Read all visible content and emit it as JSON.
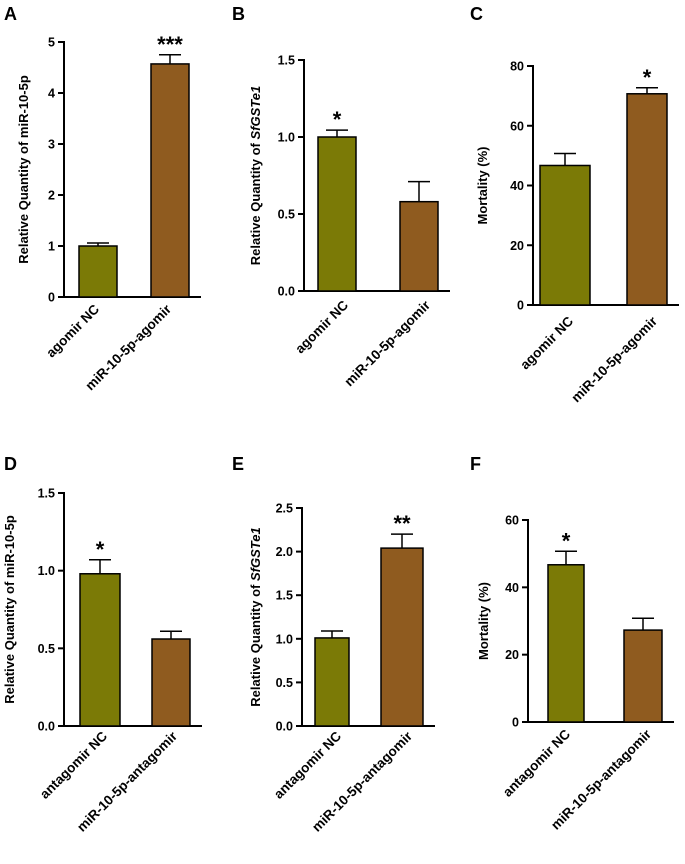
{
  "colors": {
    "nc": "#7b7a06",
    "treat": "#8f5b1f"
  },
  "chart_data": [
    {
      "panel": "A",
      "type": "bar",
      "categories": [
        "agomir NC",
        "miR-10-5p-agomir"
      ],
      "values": [
        1.0,
        4.57
      ],
      "errors": [
        0.06,
        0.18
      ],
      "ylabel": "Relative Quantity of miR-10-5p",
      "ylabel_italic": "",
      "ylim": [
        0,
        5
      ],
      "yticks": [
        "0",
        "1",
        "2",
        "3",
        "4",
        "5"
      ],
      "significance": [
        "",
        "***"
      ]
    },
    {
      "panel": "B",
      "type": "bar",
      "categories": [
        "agomir NC",
        "miR-10-5p-agomir"
      ],
      "values": [
        1.0,
        0.58
      ],
      "errors": [
        0.045,
        0.13
      ],
      "ylabel": "Relative Quantity of ",
      "ylabel_italic": "SfGSTe1",
      "ylim": [
        0,
        1.5
      ],
      "yticks": [
        "0.0",
        "0.5",
        "1.0",
        "1.5"
      ],
      "significance": [
        "*",
        ""
      ]
    },
    {
      "panel": "C",
      "type": "bar",
      "categories": [
        "agomir NC",
        "miR-10-5p-agomir"
      ],
      "values": [
        46.7,
        70.7
      ],
      "errors": [
        4.0,
        2.0
      ],
      "ylabel": "Mortality (%)",
      "ylabel_italic": "",
      "ylim": [
        0,
        80
      ],
      "yticks": [
        "0",
        "20",
        "40",
        "60",
        "80"
      ],
      "significance": [
        "",
        "*"
      ]
    },
    {
      "panel": "D",
      "type": "bar",
      "categories": [
        "antagomir NC",
        "miR-10-5p-antagomir"
      ],
      "values": [
        0.98,
        0.56
      ],
      "errors": [
        0.09,
        0.05
      ],
      "ylabel": "Relative Quantity of miR-10-5p",
      "ylabel_italic": "",
      "ylim": [
        0,
        1.5
      ],
      "yticks": [
        "0.0",
        "0.5",
        "1.0",
        "1.5"
      ],
      "significance": [
        "*",
        ""
      ]
    },
    {
      "panel": "E",
      "type": "bar",
      "categories": [
        "antagomir NC",
        "miR-10-5p-antagomir"
      ],
      "values": [
        1.01,
        2.04
      ],
      "errors": [
        0.08,
        0.16
      ],
      "ylabel": "Relative Quantity of ",
      "ylabel_italic": "SfGSTe1",
      "ylim": [
        0,
        2.5
      ],
      "yticks": [
        "0.0",
        "0.5",
        "1.0",
        "1.5",
        "2.0",
        "2.5"
      ],
      "significance": [
        "",
        "**"
      ]
    },
    {
      "panel": "F",
      "type": "bar",
      "categories": [
        "antagomir NC",
        "miR-10-5p-antagomir"
      ],
      "values": [
        46.7,
        27.3
      ],
      "errors": [
        4.0,
        3.5
      ],
      "ylabel": "Mortality (%)",
      "ylabel_italic": "",
      "ylim": [
        0,
        60
      ],
      "yticks": [
        "0",
        "20",
        "40",
        "60"
      ],
      "significance": [
        "*",
        ""
      ]
    }
  ]
}
